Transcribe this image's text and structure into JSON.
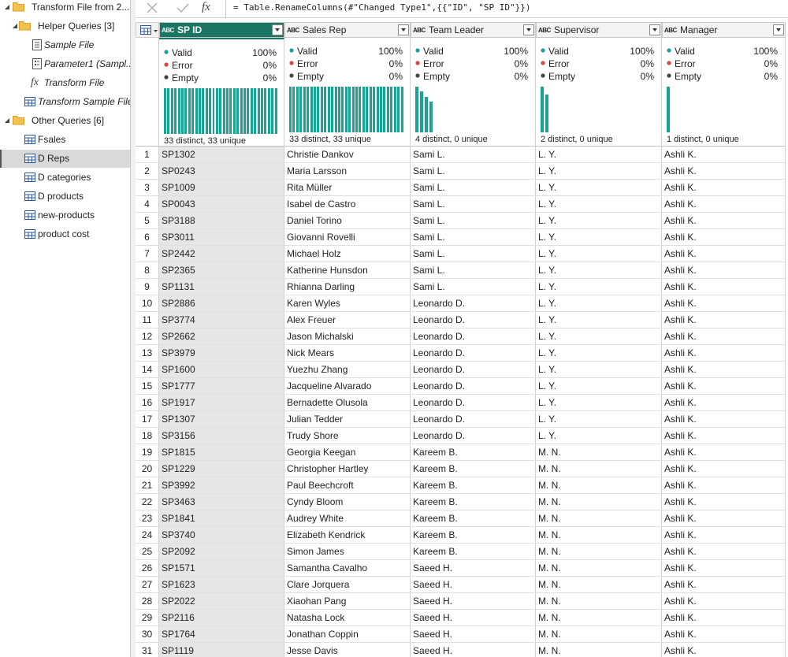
{
  "query_tree": [
    {
      "folder": "Transform File from 2...",
      "items": [
        {
          "folder": "Helper Queries [3]",
          "items": [
            {
              "name": "Sample File",
              "kind": "list"
            },
            {
              "name": "Parameter1 (Sampl...",
              "kind": "parameter"
            },
            {
              "name": "Transform File",
              "kind": "function"
            }
          ]
        },
        {
          "name": "Transform Sample File",
          "kind": "table"
        }
      ]
    },
    {
      "folder": "Other Queries [6]",
      "items": [
        {
          "name": "Fsales",
          "kind": "table"
        },
        {
          "name": "D Reps",
          "kind": "table",
          "selected": true
        },
        {
          "name": "D categories",
          "kind": "table"
        },
        {
          "name": "D products",
          "kind": "table"
        },
        {
          "name": "new-products",
          "kind": "table"
        },
        {
          "name": "product cost",
          "kind": "table"
        }
      ]
    }
  ],
  "formula_bar": {
    "fx_label": "fx",
    "formula": "= Table.RenameColumns(#\"Changed Type1\",{{\"ID\", \"SP ID\"}})"
  },
  "quality_labels": [
    "Valid",
    "Error",
    "Empty"
  ],
  "quality_colors": [
    "#1aa393",
    "#e0443e",
    "#444444"
  ],
  "profile_color": "#1aa393",
  "table": {
    "columns": [
      {
        "type_icon": "ABC",
        "name": "SP ID",
        "selected": true,
        "quality": [
          "100%",
          "0%",
          "0%"
        ],
        "distinct": "33 distinct, 33 unique",
        "distribution": [
          1,
          1,
          1,
          1,
          1,
          1,
          1,
          1,
          1,
          1,
          1,
          1,
          1,
          1,
          1,
          1,
          1,
          1,
          1,
          1,
          1,
          1,
          1,
          1,
          1,
          1,
          1,
          1,
          1,
          1,
          1,
          1,
          1
        ]
      },
      {
        "type_icon": "ABC",
        "name": "Sales Rep",
        "quality": [
          "100%",
          "0%",
          "0%"
        ],
        "distinct": "33 distinct, 33 unique",
        "distribution": [
          1,
          1,
          1,
          1,
          1,
          1,
          1,
          1,
          1,
          1,
          1,
          1,
          1,
          1,
          1,
          1,
          1,
          1,
          1,
          1,
          1,
          1,
          1,
          1,
          1,
          1,
          1,
          1,
          1,
          1,
          1,
          1,
          1
        ]
      },
      {
        "type_icon": "ABC",
        "name": "Team Leader",
        "quality": [
          "100%",
          "0%",
          "0%"
        ],
        "distinct": "4 distinct, 0 unique",
        "distribution": [
          9,
          8,
          7,
          6
        ]
      },
      {
        "type_icon": "ABC",
        "name": "Supervisor",
        "quality": [
          "100%",
          "0%",
          "0%"
        ],
        "distinct": "2 distinct, 0 unique",
        "distribution": [
          18,
          15
        ]
      },
      {
        "type_icon": "ABC",
        "name": "Manager",
        "quality": [
          "100%",
          "0%",
          "0%"
        ],
        "distinct": "1 distinct, 0 unique",
        "distribution": [
          33
        ]
      }
    ],
    "rows": [
      [
        1,
        "SP1302",
        "Christie Dankov",
        "Sami L.",
        "L. Y.",
        "Ashli K."
      ],
      [
        2,
        "SP0243",
        "Maria Larsson",
        "Sami L.",
        "L. Y.",
        "Ashli K."
      ],
      [
        3,
        "SP1009",
        "Rita Müller",
        "Sami L.",
        "L. Y.",
        "Ashli K."
      ],
      [
        4,
        "SP0043",
        "Isabel de Castro",
        "Sami L.",
        "L. Y.",
        "Ashli K."
      ],
      [
        5,
        "SP3188",
        "Daniel Torino",
        "Sami L.",
        "L. Y.",
        "Ashli K."
      ],
      [
        6,
        "SP3011",
        "Giovanni Rovelli",
        "Sami L.",
        "L. Y.",
        "Ashli K."
      ],
      [
        7,
        "SP2442",
        "Michael Holz",
        "Sami L.",
        "L. Y.",
        "Ashli K."
      ],
      [
        8,
        "SP2365",
        "Katherine Hunsdon",
        "Sami L.",
        "L. Y.",
        "Ashli K."
      ],
      [
        9,
        "SP1131",
        "Rhianna Darling",
        "Sami L.",
        "L. Y.",
        "Ashli K."
      ],
      [
        10,
        "SP2886",
        "Karen Wyles",
        "Leonardo D.",
        "L. Y.",
        "Ashli K."
      ],
      [
        11,
        "SP3774",
        "Alex Freuer",
        "Leonardo D.",
        "L. Y.",
        "Ashli K."
      ],
      [
        12,
        "SP2662",
        "Jason Michalski",
        "Leonardo D.",
        "L. Y.",
        "Ashli K."
      ],
      [
        13,
        "SP3979",
        "Nick Mears",
        "Leonardo D.",
        "L. Y.",
        "Ashli K."
      ],
      [
        14,
        "SP1600",
        "Yuezhu Zhang",
        "Leonardo D.",
        "L. Y.",
        "Ashli K."
      ],
      [
        15,
        "SP1777",
        "Jacqueline Alvarado",
        "Leonardo D.",
        "L. Y.",
        "Ashli K."
      ],
      [
        16,
        "SP1917",
        "Bernadette Olusola",
        "Leonardo D.",
        "L. Y.",
        "Ashli K."
      ],
      [
        17,
        "SP1307",
        "Julian Tedder",
        "Leonardo D.",
        "L. Y.",
        "Ashli K."
      ],
      [
        18,
        "SP3156",
        "Trudy Shore",
        "Leonardo D.",
        "L. Y.",
        "Ashli K."
      ],
      [
        19,
        "SP1815",
        "Georgia Keegan",
        "Kareem B.",
        "M. N.",
        "Ashli K."
      ],
      [
        20,
        "SP1229",
        "Christopher Hartley",
        "Kareem B.",
        "M. N.",
        "Ashli K."
      ],
      [
        21,
        "SP3992",
        "Paul Beechcroft",
        "Kareem B.",
        "M. N.",
        "Ashli K."
      ],
      [
        22,
        "SP3463",
        "Cyndy Bloom",
        "Kareem B.",
        "M. N.",
        "Ashli K."
      ],
      [
        23,
        "SP1841",
        "Audrey White",
        "Kareem B.",
        "M. N.",
        "Ashli K."
      ],
      [
        24,
        "SP3740",
        "Elizabeth Kendrick",
        "Kareem B.",
        "M. N.",
        "Ashli K."
      ],
      [
        25,
        "SP2092",
        "Simon James",
        "Kareem B.",
        "M. N.",
        "Ashli K."
      ],
      [
        26,
        "SP1571",
        "Samantha Cavalho",
        "Saeed H.",
        "M. N.",
        "Ashli K."
      ],
      [
        27,
        "SP1623",
        "Clare Jorquera",
        "Saeed H.",
        "M. N.",
        "Ashli K."
      ],
      [
        28,
        "SP2022",
        "Xiaohan Pang",
        "Saeed H.",
        "M. N.",
        "Ashli K."
      ],
      [
        29,
        "SP2116",
        "Natasha Lock",
        "Saeed H.",
        "M. N.",
        "Ashli K."
      ],
      [
        30,
        "SP1764",
        "Jonathan Coppin",
        "Saeed H.",
        "M. N.",
        "Ashli K."
      ],
      [
        31,
        "SP1119",
        "Jesse Davis",
        "Saeed H.",
        "M. N.",
        "Ashli K."
      ]
    ]
  }
}
